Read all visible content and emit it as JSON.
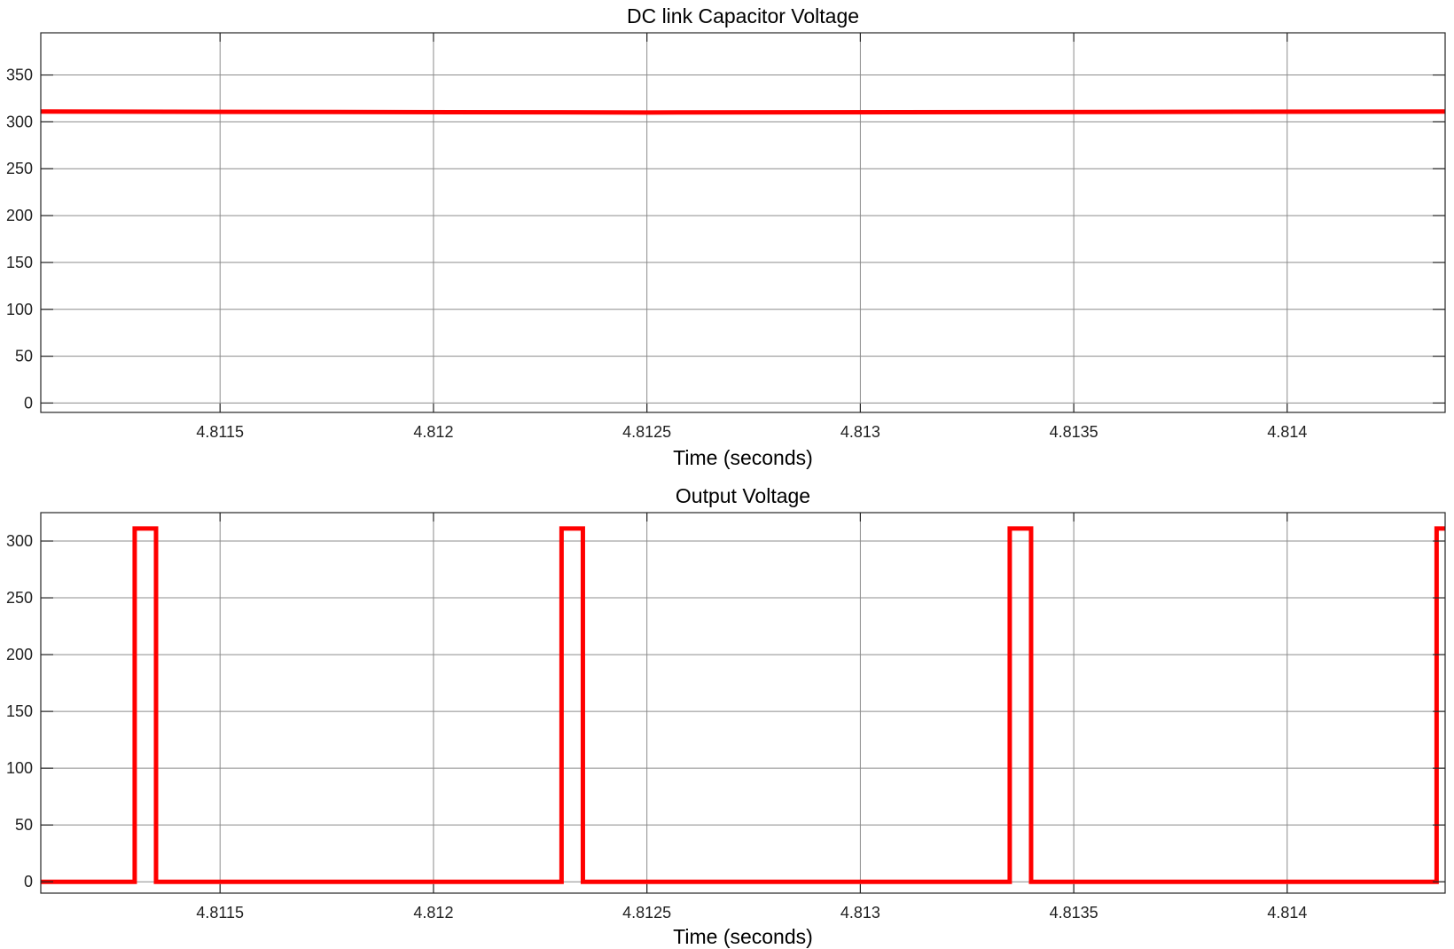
{
  "chart_data": [
    {
      "type": "line",
      "title": "DC link Capacitor Voltage",
      "xlabel": "Time (seconds)",
      "ylabel": "",
      "xlim": [
        4.81108,
        4.81437
      ],
      "ylim": [
        -10,
        395
      ],
      "xticks": [
        4.8115,
        4.812,
        4.8125,
        4.813,
        4.8135,
        4.814
      ],
      "xtick_labels": [
        "4.8115",
        "4.812",
        "4.8125",
        "4.813",
        "4.8135",
        "4.814"
      ],
      "yticks": [
        0,
        50,
        100,
        150,
        200,
        250,
        300,
        350
      ],
      "ytick_labels": [
        "0",
        "50",
        "100",
        "150",
        "200",
        "250",
        "300",
        "350"
      ],
      "grid": true,
      "series": [
        {
          "color": "#ff0000",
          "x": [
            4.81108,
            4.8125,
            4.81437
          ],
          "y": [
            311,
            310,
            311
          ]
        }
      ]
    },
    {
      "type": "line",
      "title": "Output Voltage",
      "xlabel": "Time (seconds)",
      "ylabel": "",
      "xlim": [
        4.81108,
        4.81437
      ],
      "ylim": [
        -10,
        325
      ],
      "xticks": [
        4.8115,
        4.812,
        4.8125,
        4.813,
        4.8135,
        4.814
      ],
      "xtick_labels": [
        "4.8115",
        "4.812",
        "4.8125",
        "4.813",
        "4.8135",
        "4.814"
      ],
      "yticks": [
        0,
        50,
        100,
        150,
        200,
        250,
        300
      ],
      "ytick_labels": [
        "0",
        "50",
        "100",
        "150",
        "200",
        "250",
        "300"
      ],
      "grid": true,
      "series": [
        {
          "color": "#ff0000",
          "x": [
            4.81108,
            4.8113,
            4.8113,
            4.81135,
            4.81135,
            4.8123,
            4.8123,
            4.81235,
            4.81235,
            4.81335,
            4.81335,
            4.8134,
            4.8134,
            4.81435,
            4.81435,
            4.81437
          ],
          "y": [
            0,
            0,
            311,
            311,
            0,
            0,
            311,
            311,
            0,
            0,
            311,
            311,
            0,
            0,
            311,
            311
          ]
        }
      ]
    }
  ]
}
